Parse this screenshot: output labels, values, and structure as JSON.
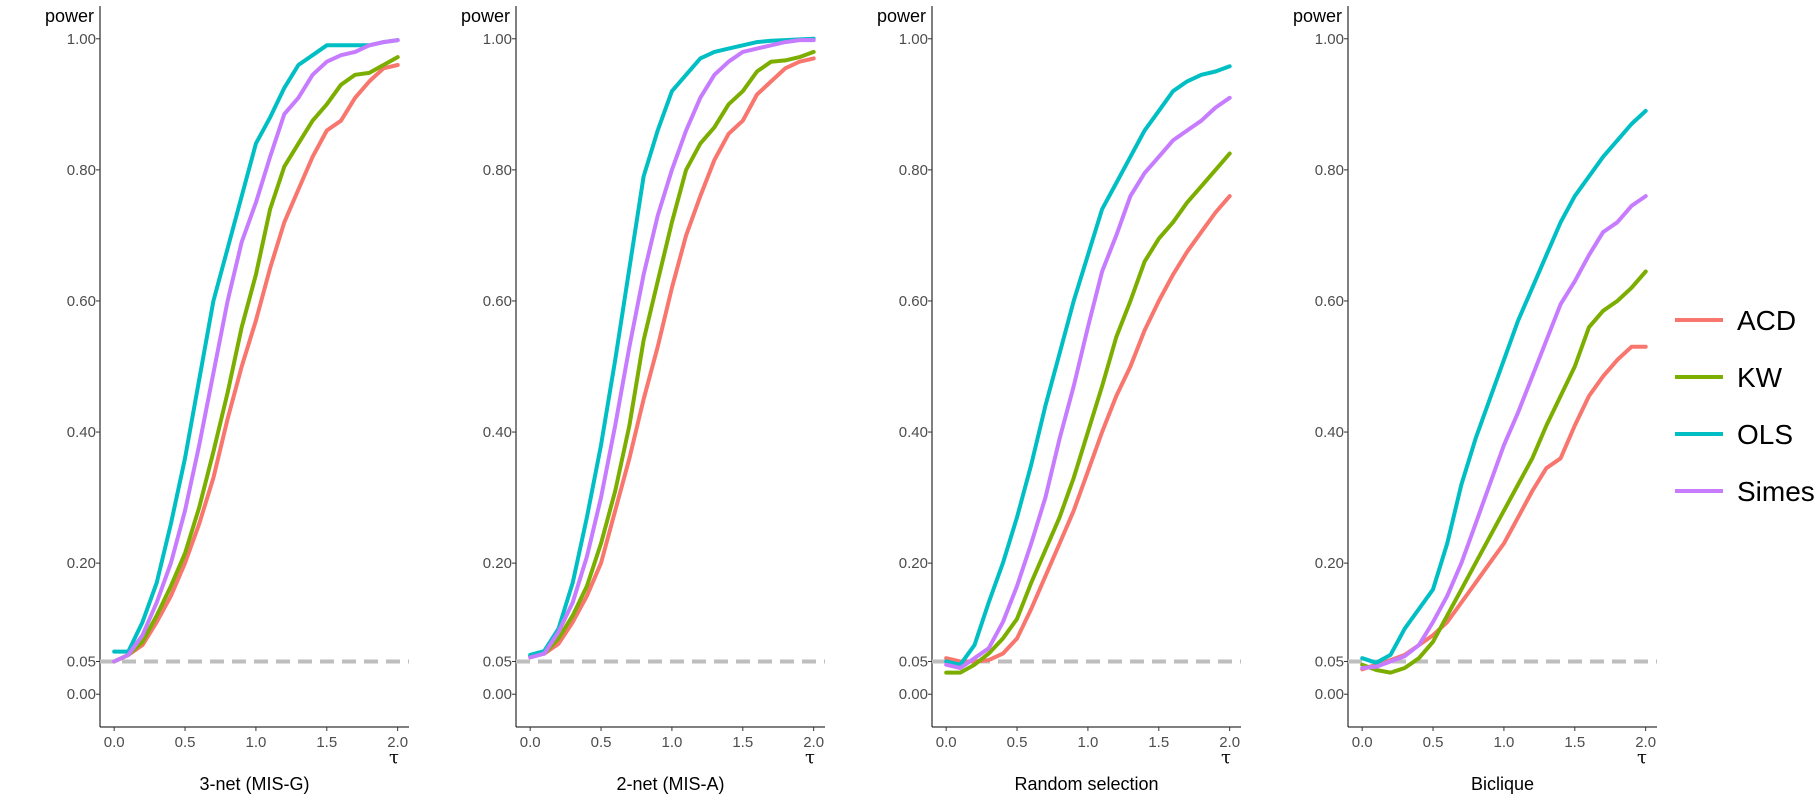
{
  "chart_data": {
    "type": "line",
    "ylabel": "power",
    "xlabel_symbol": "τ",
    "xlim": [
      -0.1,
      2.08
    ],
    "ylim": [
      -0.05,
      1.05
    ],
    "x_ticks": [
      0.0,
      0.5,
      1.0,
      1.5,
      2.0
    ],
    "x_tick_labels": [
      "0.0",
      "0.5",
      "1.0",
      "1.5",
      "2.0"
    ],
    "y_ticks": [
      0.0,
      0.05,
      0.2,
      0.4,
      0.6,
      0.8,
      1.0
    ],
    "y_tick_labels": [
      "0.00",
      "0.05",
      "0.20",
      "0.40",
      "0.60",
      "0.80",
      "1.00"
    ],
    "reference_line": {
      "y": 0.05,
      "color": "#bebebe",
      "style": "dashed"
    },
    "legend": {
      "position": "right",
      "entries": [
        "ACD",
        "KW",
        "OLS",
        "Simes"
      ]
    },
    "series_colors": {
      "ACD": "#F8766D",
      "KW": "#7CAE00",
      "OLS": "#00BFC4",
      "Simes": "#C77CFF"
    },
    "x": [
      0.0,
      0.1,
      0.2,
      0.3,
      0.4,
      0.5,
      0.6,
      0.7,
      0.8,
      0.9,
      1.0,
      1.1,
      1.2,
      1.3,
      1.4,
      1.5,
      1.6,
      1.7,
      1.8,
      1.9,
      2.0
    ],
    "panels": [
      {
        "title": "3-net (MIS-G)",
        "series": [
          {
            "name": "ACD",
            "values": [
              0.05,
              0.06,
              0.075,
              0.11,
              0.15,
              0.2,
              0.26,
              0.33,
              0.42,
              0.5,
              0.57,
              0.65,
              0.72,
              0.77,
              0.82,
              0.86,
              0.875,
              0.91,
              0.935,
              0.955,
              0.96
            ]
          },
          {
            "name": "KW",
            "values": [
              0.05,
              0.06,
              0.08,
              0.12,
              0.165,
              0.215,
              0.285,
              0.37,
              0.46,
              0.56,
              0.64,
              0.74,
              0.805,
              0.84,
              0.875,
              0.9,
              0.93,
              0.945,
              0.948,
              0.96,
              0.972
            ]
          },
          {
            "name": "OLS",
            "values": [
              0.065,
              0.065,
              0.11,
              0.17,
              0.26,
              0.36,
              0.48,
              0.6,
              0.68,
              0.76,
              0.84,
              0.88,
              0.925,
              0.96,
              0.975,
              0.99,
              0.99,
              0.99,
              0.99,
              0.995,
              0.998
            ]
          },
          {
            "name": "Simes",
            "values": [
              0.05,
              0.06,
              0.09,
              0.14,
              0.2,
              0.28,
              0.38,
              0.49,
              0.6,
              0.69,
              0.75,
              0.82,
              0.885,
              0.91,
              0.945,
              0.965,
              0.975,
              0.98,
              0.99,
              0.995,
              0.998
            ]
          }
        ]
      },
      {
        "title": "2-net (MIS-A)",
        "series": [
          {
            "name": "ACD",
            "values": [
              0.058,
              0.062,
              0.077,
              0.11,
              0.15,
              0.2,
              0.28,
              0.36,
              0.45,
              0.53,
              0.62,
              0.7,
              0.76,
              0.815,
              0.855,
              0.875,
              0.915,
              0.935,
              0.955,
              0.965,
              0.97
            ]
          },
          {
            "name": "KW",
            "values": [
              0.058,
              0.062,
              0.085,
              0.12,
              0.165,
              0.23,
              0.31,
              0.41,
              0.54,
              0.63,
              0.72,
              0.8,
              0.84,
              0.865,
              0.9,
              0.92,
              0.95,
              0.965,
              0.967,
              0.972,
              0.98
            ]
          },
          {
            "name": "OLS",
            "values": [
              0.06,
              0.066,
              0.1,
              0.17,
              0.27,
              0.38,
              0.51,
              0.65,
              0.79,
              0.86,
              0.92,
              0.945,
              0.97,
              0.98,
              0.985,
              0.99,
              0.995,
              0.997,
              0.998,
              0.999,
              1.0
            ]
          },
          {
            "name": "Simes",
            "values": [
              0.056,
              0.062,
              0.095,
              0.14,
              0.21,
              0.3,
              0.41,
              0.53,
              0.64,
              0.73,
              0.8,
              0.86,
              0.91,
              0.945,
              0.965,
              0.98,
              0.985,
              0.99,
              0.995,
              0.998,
              0.998
            ]
          }
        ]
      },
      {
        "title": "Random selection",
        "series": [
          {
            "name": "ACD",
            "values": [
              0.055,
              0.05,
              0.05,
              0.052,
              0.062,
              0.085,
              0.13,
              0.18,
              0.23,
              0.28,
              0.34,
              0.4,
              0.455,
              0.5,
              0.555,
              0.6,
              0.64,
              0.675,
              0.705,
              0.735,
              0.76
            ]
          },
          {
            "name": "KW",
            "values": [
              0.033,
              0.033,
              0.045,
              0.062,
              0.085,
              0.115,
              0.17,
              0.22,
              0.27,
              0.33,
              0.4,
              0.47,
              0.545,
              0.6,
              0.66,
              0.695,
              0.72,
              0.75,
              0.775,
              0.8,
              0.825
            ]
          },
          {
            "name": "OLS",
            "values": [
              0.05,
              0.045,
              0.075,
              0.14,
              0.2,
              0.27,
              0.35,
              0.44,
              0.52,
              0.6,
              0.67,
              0.74,
              0.78,
              0.82,
              0.86,
              0.89,
              0.92,
              0.935,
              0.945,
              0.95,
              0.958
            ]
          },
          {
            "name": "Simes",
            "values": [
              0.045,
              0.04,
              0.055,
              0.07,
              0.11,
              0.165,
              0.23,
              0.3,
              0.39,
              0.47,
              0.56,
              0.645,
              0.7,
              0.76,
              0.795,
              0.82,
              0.845,
              0.86,
              0.875,
              0.895,
              0.91
            ]
          }
        ]
      },
      {
        "title": "Biclique",
        "series": [
          {
            "name": "ACD",
            "values": [
              0.038,
              0.045,
              0.052,
              0.06,
              0.075,
              0.09,
              0.11,
              0.14,
              0.17,
              0.2,
              0.23,
              0.27,
              0.31,
              0.345,
              0.36,
              0.41,
              0.455,
              0.485,
              0.51,
              0.53,
              0.53
            ]
          },
          {
            "name": "KW",
            "values": [
              0.045,
              0.037,
              0.033,
              0.04,
              0.055,
              0.08,
              0.12,
              0.16,
              0.2,
              0.24,
              0.28,
              0.32,
              0.36,
              0.41,
              0.455,
              0.5,
              0.56,
              0.585,
              0.6,
              0.62,
              0.645
            ]
          },
          {
            "name": "OLS",
            "values": [
              0.055,
              0.048,
              0.06,
              0.1,
              0.13,
              0.16,
              0.23,
              0.32,
              0.39,
              0.45,
              0.51,
              0.57,
              0.62,
              0.67,
              0.72,
              0.76,
              0.79,
              0.82,
              0.845,
              0.87,
              0.89
            ]
          },
          {
            "name": "Simes",
            "values": [
              0.04,
              0.042,
              0.05,
              0.058,
              0.075,
              0.11,
              0.15,
              0.2,
              0.26,
              0.32,
              0.38,
              0.43,
              0.485,
              0.54,
              0.595,
              0.63,
              0.67,
              0.705,
              0.72,
              0.745,
              0.76
            ]
          }
        ]
      }
    ]
  }
}
